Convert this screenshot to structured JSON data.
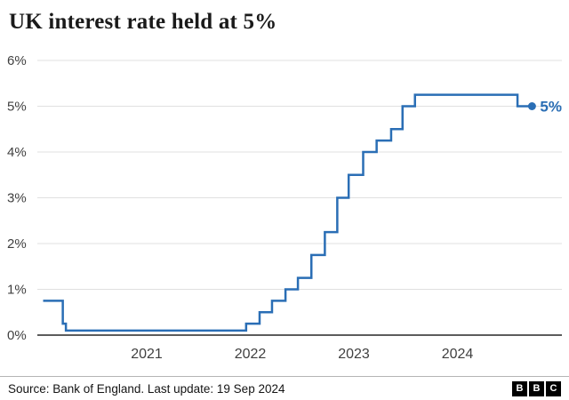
{
  "chart_data": {
    "type": "line",
    "subtype": "step",
    "title": "UK interest rate held at 5%",
    "unit": "%",
    "x_range": [
      2020.0,
      2024.8
    ],
    "y_range": [
      0,
      6
    ],
    "y_ticks": [
      "0%",
      "1%",
      "2%",
      "3%",
      "4%",
      "5%",
      "6%"
    ],
    "x_ticks": [
      "2021",
      "2022",
      "2023",
      "2024"
    ],
    "end_label": "5%",
    "grid": true,
    "legend": "none",
    "colors": {
      "line": "#2a6eb5",
      "grid": "#e0e0e0",
      "axis": "#262626",
      "tick_label": "#404040"
    },
    "series": [
      {
        "name": "UK interest rate",
        "color": "#2a6eb5",
        "points": [
          [
            2020.0,
            0.75
          ],
          [
            2020.19,
            0.25
          ],
          [
            2020.22,
            0.1
          ],
          [
            2021.96,
            0.25
          ],
          [
            2022.09,
            0.5
          ],
          [
            2022.21,
            0.75
          ],
          [
            2022.34,
            1.0
          ],
          [
            2022.46,
            1.25
          ],
          [
            2022.59,
            1.75
          ],
          [
            2022.72,
            2.25
          ],
          [
            2022.84,
            3.0
          ],
          [
            2022.95,
            3.5
          ],
          [
            2023.09,
            4.0
          ],
          [
            2023.22,
            4.25
          ],
          [
            2023.36,
            4.5
          ],
          [
            2023.47,
            5.0
          ],
          [
            2023.59,
            5.25
          ],
          [
            2024.58,
            5.0
          ],
          [
            2024.72,
            5.0
          ]
        ]
      }
    ]
  },
  "footer": {
    "source": "Source: Bank of England. Last update: 19 Sep 2024",
    "logo_letters": [
      "B",
      "B",
      "C"
    ]
  }
}
